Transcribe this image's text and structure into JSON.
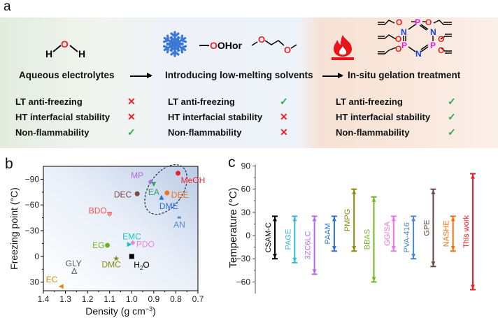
{
  "panel_a": {
    "letter": "a",
    "columns": [
      {
        "title": "Aqueous electrolytes",
        "icon": "water-molecule-icon",
        "molecule": {
          "atoms": [
            "H",
            "O",
            "H"
          ]
        },
        "properties": [
          {
            "label": "LT anti-freezing",
            "status": "cross"
          },
          {
            "label": "HT interfacial stability",
            "status": "cross"
          },
          {
            "label": "Non-flammability",
            "status": "check"
          }
        ]
      },
      {
        "title": "Introducing low-melting solvents",
        "icon": "snowflake-icon",
        "molecule_text": {
          "hydroxyl": "OH",
          "or": "or",
          "ether_o": "O"
        },
        "properties": [
          {
            "label": "LT anti-freezing",
            "status": "check"
          },
          {
            "label": "HT interfacial stability",
            "status": "cross"
          },
          {
            "label": "Non-flammability",
            "status": "cross"
          }
        ]
      },
      {
        "title": "In-situ gelation treatment",
        "icon": "flame-icon",
        "molecule_text": {
          "P": "P",
          "N": "N",
          "O": "O"
        },
        "properties": [
          {
            "label": "LT anti-freezing",
            "status": "check"
          },
          {
            "label": "HT interfacial stability",
            "status": "check"
          },
          {
            "label": "Non-flammability",
            "status": "check"
          }
        ]
      }
    ],
    "marks": {
      "check": "✓",
      "cross": "✕"
    },
    "colors": {
      "check": "#2aa84a",
      "cross": "#e8242a",
      "oxygen": "#e8242a",
      "phosphorus": "#e020e0",
      "nitrogen": "#1a3fe0",
      "snowflake": "#3a78d8",
      "flame": "#e8141a"
    }
  },
  "chart_data": [
    {
      "panel": "b",
      "type": "scatter",
      "xlabel": "Density (g cm",
      "xlabel_sup": "-3",
      "xlabel_end": ")",
      "ylabel": "Freezing point (°C)",
      "xlim": [
        1.4,
        0.7
      ],
      "ylim": [
        40,
        -105
      ],
      "x_ticks": [
        "1.4",
        "1.3",
        "1.2",
        "1.1",
        "1.0",
        "0.9",
        "0.8",
        "0.7"
      ],
      "x_tick_values": [
        1.4,
        1.3,
        1.2,
        1.1,
        1.0,
        0.9,
        0.8,
        0.7
      ],
      "y_ticks": [
        "-90",
        "-60",
        "-30",
        "0",
        "30"
      ],
      "y_tick_values": [
        -90,
        -60,
        -30,
        0,
        30
      ],
      "points": [
        {
          "label": "MeOH",
          "x": 0.79,
          "y": -97,
          "color": "#e8242a",
          "marker": "circle"
        },
        {
          "label": "MP",
          "x": 0.915,
          "y": -87,
          "color": "#b36ae0",
          "marker": "diamond"
        },
        {
          "label": "EA",
          "x": 0.9,
          "y": -84,
          "color": "#2aa860",
          "marker": "triangle-down"
        },
        {
          "label": "DEE",
          "x": 0.84,
          "y": -74,
          "color": "#f07020",
          "marker": "pentagon"
        },
        {
          "label": "DEC",
          "x": 0.975,
          "y": -73,
          "color": "#7a4a40",
          "marker": "hexagon"
        },
        {
          "label": "DME",
          "x": 0.865,
          "y": -69,
          "color": "#2a70d8",
          "marker": "triangle-up"
        },
        {
          "label": "BDO",
          "x": 1.1,
          "y": -50,
          "color": "#f05050",
          "marker": "half-triangle-down"
        },
        {
          "label": "AN",
          "x": 0.785,
          "y": -45,
          "color": "#5a8ad0",
          "marker": "half-square"
        },
        {
          "label": "EMC",
          "x": 1.01,
          "y": -14,
          "color": "#20c0c8",
          "marker": "triangle-right"
        },
        {
          "label": "PDO",
          "x": 0.995,
          "y": -16,
          "color": "#f080e0",
          "marker": "half-diamond"
        },
        {
          "label": "EG",
          "x": 1.11,
          "y": -13,
          "color": "#70b020",
          "marker": "half-circle"
        },
        {
          "label": "DMC",
          "x": 1.07,
          "y": 2,
          "color": "#8a8a10",
          "marker": "star"
        },
        {
          "label": "H2O",
          "x": 1.0,
          "y": 0,
          "color": "#000000",
          "marker": "square"
        },
        {
          "label": "GLY",
          "x": 1.26,
          "y": 17,
          "color": "#555555",
          "marker": "open-triangle"
        },
        {
          "label": "EC",
          "x": 1.32,
          "y": 35,
          "color": "#d09010",
          "marker": "triangle-left"
        }
      ],
      "annotation": "dashed ellipse around low-density ether/ester/alcohol cluster",
      "background": "gradient"
    },
    {
      "panel": "c",
      "type": "range",
      "ylabel": "Temperature (°C)",
      "ylim": [
        -75,
        95
      ],
      "y_ticks": [
        "90",
        "60",
        "30",
        "0",
        "-30",
        "-60"
      ],
      "y_tick_values": [
        90,
        60,
        30,
        0,
        -30,
        -60
      ],
      "series": [
        {
          "name": "CSAM-C",
          "min": -30,
          "max": 25,
          "color": "#000000"
        },
        {
          "name": "PAGE",
          "min": -35,
          "max": 25,
          "color": "#3ab8d0"
        },
        {
          "name": "3ZC6LC",
          "min": -50,
          "max": 25,
          "color": "#b070e0"
        },
        {
          "name": "PAAM",
          "min": -20,
          "max": 25,
          "color": "#2a70d0"
        },
        {
          "name": "PMPG",
          "min": -20,
          "max": 60,
          "color": "#8a8a10"
        },
        {
          "name": "BBAS",
          "min": -60,
          "max": 50,
          "color": "#70b820"
        },
        {
          "name": "GG/SA",
          "min": -20,
          "max": 25,
          "color": "#f070e8"
        },
        {
          "name": "PVA-416",
          "min": -30,
          "max": 25,
          "color": "#4a88c8"
        },
        {
          "name": "GPE",
          "min": -40,
          "max": 60,
          "color": "#6a4a48"
        },
        {
          "name": "NASHE",
          "min": -20,
          "max": 25,
          "color": "#f07010"
        },
        {
          "name": "This work",
          "min": -70,
          "max": 80,
          "color": "#ee1c24"
        }
      ]
    }
  ]
}
